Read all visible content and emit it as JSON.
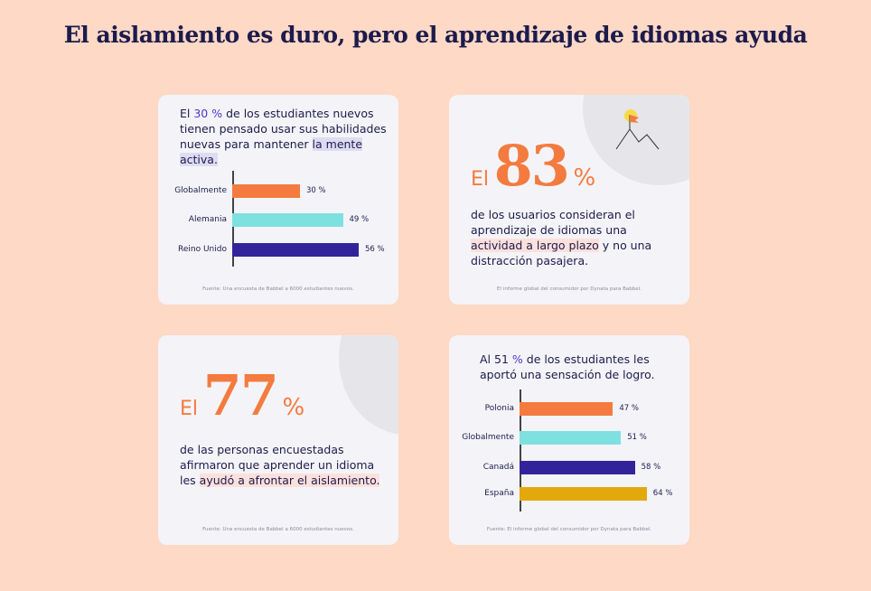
{
  "title": "El aislamiento es duro, pero el aprendizaje de idiomas ayuda",
  "card1": {
    "pre": "El ",
    "hl": "30 %",
    "post": " de los estudiantes nuevos tienen pensado usar sus habilidades nuevas para mantener ",
    "mark": "la mente activa.",
    "source": "Fuente: Una encuesta de Babbel a 6000 estudiantes nuevos."
  },
  "card2": {
    "el": "El",
    "num": "83",
    "pct": "%",
    "pre": "de los usuarios consideran el aprendizaje de idiomas una ",
    "mark": "actividad a largo plazo",
    "post": " y no una distracción pasajera.",
    "source": "El informe global del consumidor por Dynata para Babbel.",
    "icon": "mountain-flag-icon"
  },
  "card3": {
    "el": "El",
    "num": "77",
    "pct": "%",
    "pre": "de las personas encuestadas afirmaron que aprender un idioma les ",
    "mark": "ayudó a afrontar el aislamiento.",
    "source": "Fuente: Una encuesta de Babbel a 6000 estudiantes nuevos."
  },
  "card4": {
    "pre": "Al 51 ",
    "hl": "%",
    "post": " de los estudiantes les aportó una sensación de logro.",
    "source": "Fuente: El informe global del consumidor por Dynata para Babbel."
  },
  "chart_data": [
    {
      "type": "bar",
      "orientation": "horizontal",
      "categories": [
        "Globalmente",
        "Alemania",
        "Reino Unido"
      ],
      "values": [
        30,
        49,
        56
      ],
      "labels": [
        "30 %",
        "49 %",
        "56 %"
      ],
      "colors": [
        "#f47b3f",
        "#7fe0e0",
        "#33239a"
      ]
    },
    {
      "type": "bar",
      "orientation": "horizontal",
      "categories": [
        "Polonia",
        "Globalmente",
        "Canadá",
        "España"
      ],
      "values": [
        47,
        51,
        58,
        64
      ],
      "labels": [
        "47 %",
        "51 %",
        "58 %",
        "64 %"
      ],
      "colors": [
        "#f47b3f",
        "#7fe0e0",
        "#33239a",
        "#e3a80c"
      ]
    }
  ]
}
